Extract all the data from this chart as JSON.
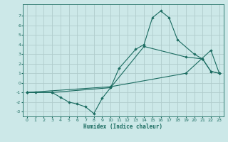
{
  "title": "",
  "xlabel": "Humidex (Indice chaleur)",
  "ylabel": "",
  "background_color": "#cce8e8",
  "grid_color": "#b0cccc",
  "line_color": "#1a6b60",
  "marker_color": "#1a6b60",
  "xlim": [
    -0.5,
    23.5
  ],
  "ylim": [
    -3.5,
    8.2
  ],
  "xticks": [
    0,
    1,
    2,
    3,
    4,
    5,
    6,
    7,
    8,
    9,
    10,
    11,
    12,
    13,
    14,
    15,
    16,
    17,
    18,
    19,
    20,
    21,
    22,
    23
  ],
  "yticks": [
    -3,
    -2,
    -1,
    0,
    1,
    2,
    3,
    4,
    5,
    6,
    7
  ],
  "series": [
    {
      "x": [
        0,
        1,
        3,
        4,
        5,
        6,
        7,
        8,
        9,
        10,
        11,
        13,
        14,
        15,
        16,
        17,
        18,
        20,
        21,
        22,
        23
      ],
      "y": [
        -1,
        -1,
        -1,
        -1.5,
        -2,
        -2.2,
        -2.5,
        -3.2,
        -1.6,
        -0.5,
        1.5,
        3.5,
        4.0,
        6.8,
        7.5,
        6.8,
        4.5,
        3.0,
        2.5,
        1.2,
        1.0
      ]
    },
    {
      "x": [
        0,
        3,
        10,
        14,
        19,
        21,
        22,
        23
      ],
      "y": [
        -1,
        -1,
        -0.5,
        3.8,
        2.7,
        2.5,
        1.2,
        1.0
      ]
    },
    {
      "x": [
        0,
        10,
        19,
        22,
        23
      ],
      "y": [
        -1,
        -0.4,
        1.0,
        3.4,
        1.0
      ]
    }
  ]
}
